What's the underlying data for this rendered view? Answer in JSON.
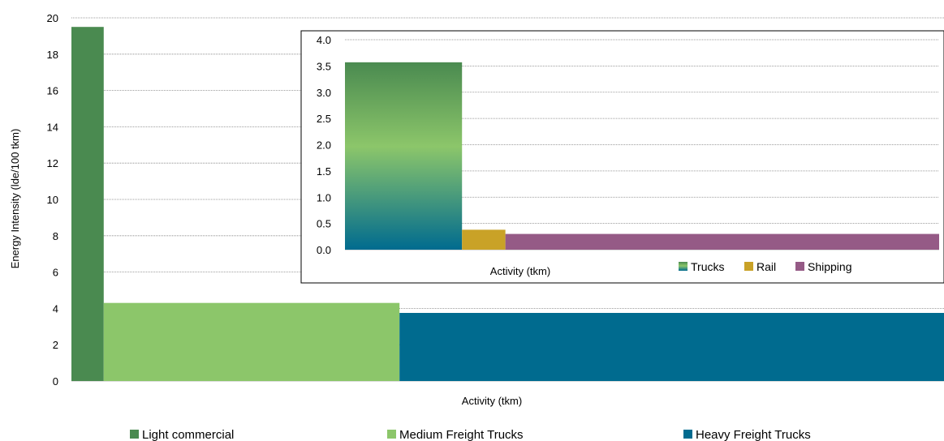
{
  "chart_data": [
    {
      "type": "bar",
      "variant": "variable-width",
      "xlabel": "Activity (tkm)",
      "ylabel": "Energy Intensity (lde/100 tkm)",
      "ylim": [
        0,
        20
      ],
      "yticks": [
        "0",
        "2",
        "4",
        "6",
        "8",
        "10",
        "12",
        "14",
        "16",
        "18",
        "20"
      ],
      "grid": true,
      "legend_position": "bottom",
      "series": [
        {
          "name": "Light commercial",
          "value": 19.5,
          "activity_share": 0.037,
          "color": "#4a8a50"
        },
        {
          "name": "Medium Freight Trucks",
          "value": 4.3,
          "activity_share": 0.339,
          "color": "#8cc66a"
        },
        {
          "name": "Heavy Freight Trucks",
          "value": 3.75,
          "activity_share": 0.624,
          "color": "#006b8f"
        }
      ]
    },
    {
      "type": "bar",
      "variant": "variable-width",
      "inset": true,
      "xlabel": "Activity (tkm)",
      "ylim": [
        0,
        4.0
      ],
      "yticks": [
        "0.0",
        "0.5",
        "1.0",
        "1.5",
        "2.0",
        "2.5",
        "3.0",
        "3.5",
        "4.0"
      ],
      "grid": true,
      "legend_position": "bottom-right",
      "series": [
        {
          "name": "Trucks",
          "value": 3.57,
          "activity_share": 0.197,
          "color_top": "#4a8a50",
          "color_mid": "#8cc66a",
          "color_bottom": "#006b8f"
        },
        {
          "name": "Rail",
          "value": 0.38,
          "activity_share": 0.073,
          "color": "#c9a227"
        },
        {
          "name": "Shipping",
          "value": 0.3,
          "activity_share": 0.73,
          "color": "#955a86"
        }
      ]
    }
  ]
}
